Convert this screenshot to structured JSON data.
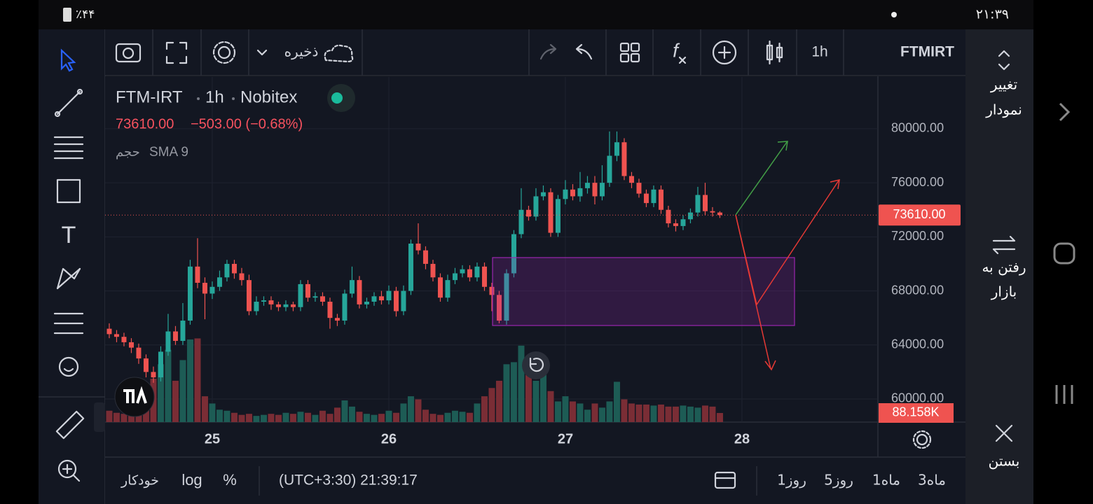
{
  "status_bar": {
    "battery": "٪۴۴",
    "time": "۲۱:۳۹"
  },
  "toolbar": {
    "save": "ذخیره",
    "interval": "1h",
    "symbol": "FTMIRT"
  },
  "legend": {
    "symbol": "FTM-IRT",
    "interval": "1h",
    "exchange": "Nobitex",
    "price": "73610.00",
    "change": "−503.00 (−0.68%)",
    "volume": "حجم",
    "indicator": "SMA 9"
  },
  "chart_data": {
    "type": "candlestick",
    "x": [
      24.4167,
      24.4583,
      24.5,
      24.5417,
      24.5833,
      24.625,
      24.6667,
      24.7083,
      24.75,
      24.7917,
      24.8333,
      24.875,
      24.9167,
      24.9583,
      25,
      25.0417,
      25.0833,
      25.125,
      25.1667,
      25.2083,
      25.25,
      25.2917,
      25.3333,
      25.375,
      25.4167,
      25.4583,
      25.5,
      25.5417,
      25.5833,
      25.625,
      25.6667,
      25.7083,
      25.75,
      25.7917,
      25.8333,
      25.875,
      25.9167,
      25.9583,
      26,
      26.0417,
      26.0833,
      26.125,
      26.1667,
      26.2083,
      26.25,
      26.2917,
      26.3333,
      26.375,
      26.4167,
      26.4583,
      26.5,
      26.5417,
      26.5833,
      26.625,
      26.6667,
      26.7083,
      26.75,
      26.7917,
      26.8333,
      26.875,
      26.9167,
      26.9583,
      27,
      27.0417,
      27.0833,
      27.125,
      27.1667,
      27.2083,
      27.25,
      27.2917,
      27.3333,
      27.375,
      27.4167,
      27.4583,
      27.5,
      27.5417,
      27.5833,
      27.625,
      27.6667,
      27.7083,
      27.75,
      27.7917,
      27.8333,
      27.875
    ],
    "open": [
      65200,
      64800,
      64600,
      64200,
      63800,
      63000,
      62000,
      61600,
      63500,
      65000,
      64300,
      65800,
      69800,
      68600,
      67800,
      68300,
      69000,
      70000,
      69300,
      68800,
      66500,
      67200,
      67300,
      67000,
      66800,
      67000,
      66800,
      68500,
      67500,
      67600,
      67200,
      66000,
      65800,
      67800,
      68800,
      67000,
      67200,
      67600,
      67300,
      68000,
      66500,
      68000,
      71500,
      71000,
      70000,
      69000,
      67500,
      68800,
      69300,
      69600,
      69000,
      69800,
      68300,
      67700,
      65800,
      69300,
      72200,
      74000,
      73500,
      75000,
      75300,
      72300,
      74800,
      75500,
      75000,
      75600,
      76000,
      75000,
      76000,
      78000,
      79000,
      76500,
      76000,
      75200,
      74500,
      75500,
      74000,
      73000,
      72800,
      73300,
      73800,
      75100,
      73900,
      73800
    ],
    "high": [
      65600,
      65100,
      64900,
      64500,
      64100,
      63300,
      62400,
      63900,
      66300,
      65400,
      67100,
      70300,
      71900,
      69000,
      68700,
      69500,
      70300,
      70300,
      69700,
      69200,
      67600,
      67600,
      67600,
      67200,
      67300,
      67200,
      68800,
      68800,
      67900,
      67900,
      67500,
      66300,
      68100,
      69800,
      69100,
      67500,
      67900,
      68000,
      68400,
      68300,
      68400,
      71800,
      73000,
      71300,
      70300,
      69300,
      69200,
      69700,
      69900,
      69900,
      70100,
      70100,
      68600,
      68000,
      69600,
      72500,
      75600,
      74300,
      75600,
      75800,
      75600,
      75100,
      76200,
      75900,
      76800,
      76500,
      76500,
      77300,
      79800,
      79800,
      79300,
      76800,
      76300,
      75500,
      75800,
      75800,
      74300,
      73300,
      73600,
      74100,
      75700,
      76000,
      74200,
      73900
    ],
    "low": [
      64500,
      64200,
      63900,
      63400,
      62600,
      61600,
      61200,
      61300,
      63200,
      64000,
      64000,
      65500,
      68200,
      65900,
      67400,
      68000,
      68700,
      68900,
      68400,
      66200,
      66200,
      66900,
      66600,
      66500,
      66500,
      66500,
      66500,
      67200,
      67200,
      66900,
      65200,
      65400,
      65500,
      67500,
      66700,
      66700,
      66900,
      67000,
      67000,
      66100,
      66200,
      67700,
      70700,
      69600,
      68700,
      67200,
      67200,
      68500,
      69000,
      68700,
      68700,
      68000,
      66500,
      65600,
      65500,
      69000,
      71900,
      73200,
      73200,
      74700,
      72000,
      72000,
      74400,
      74700,
      74600,
      75200,
      74400,
      74700,
      75700,
      77600,
      76200,
      75600,
      74900,
      74200,
      74200,
      73700,
      72700,
      72400,
      72500,
      73000,
      73500,
      73600,
      73500,
      73400
    ],
    "close": [
      64800,
      64600,
      64200,
      63800,
      63000,
      62000,
      61600,
      63500,
      65000,
      64300,
      65800,
      69800,
      68600,
      67800,
      68300,
      69000,
      70000,
      69300,
      68800,
      66500,
      67200,
      67300,
      67000,
      66800,
      67000,
      66800,
      68500,
      67500,
      67600,
      67200,
      66000,
      65800,
      67800,
      68800,
      67000,
      67200,
      67600,
      67300,
      68000,
      66500,
      68000,
      71500,
      71000,
      70000,
      69000,
      67500,
      68800,
      69300,
      69600,
      69000,
      69800,
      68300,
      67700,
      65800,
      69300,
      72200,
      74000,
      73500,
      75000,
      75300,
      72300,
      74800,
      75500,
      75000,
      75600,
      76000,
      75000,
      76000,
      78000,
      79000,
      76500,
      76000,
      75200,
      74500,
      75500,
      74000,
      73000,
      72800,
      73300,
      73800,
      75100,
      73900,
      73800,
      73610
    ],
    "volume": [
      110000,
      90000,
      80000,
      100000,
      150000,
      350000,
      420000,
      560000,
      700000,
      400000,
      600000,
      800000,
      810000,
      250000,
      180000,
      120000,
      110000,
      90000,
      70000,
      80000,
      60000,
      70000,
      80000,
      70000,
      90000,
      80000,
      100000,
      90000,
      70000,
      110000,
      80000,
      140000,
      210000,
      150000,
      100000,
      80000,
      70000,
      80000,
      110000,
      90000,
      180000,
      250000,
      220000,
      120000,
      80000,
      70000,
      90000,
      110000,
      100000,
      90000,
      180000,
      250000,
      330000,
      400000,
      560000,
      580000,
      740000,
      600000,
      400000,
      460000,
      300000,
      200000,
      250000,
      200000,
      180000,
      120000,
      180000,
      140000,
      200000,
      390000,
      220000,
      180000,
      170000,
      170000,
      160000,
      170000,
      150000,
      150000,
      160000,
      150000,
      140000,
      160000,
      150000,
      88158
    ],
    "up_color": "#26a69a",
    "down_color": "#ef5350",
    "volume_up_color": "#1d5c55",
    "volume_down_color": "#7a2d35",
    "xlim": [
      24.393,
      28.77
    ],
    "xticks": [
      25,
      26,
      27,
      28
    ],
    "ylim": [
      58290,
      83830
    ],
    "yticks": [
      {
        "value": 60000,
        "label": "60000.00"
      },
      {
        "value": 64000,
        "label": "64000.00"
      },
      {
        "value": 68000,
        "label": "68000.00"
      },
      {
        "value": 72000,
        "label": "72000.00"
      },
      {
        "value": 76000,
        "label": "76000.00"
      },
      {
        "value": 80000,
        "label": "80000.00"
      }
    ],
    "volume_lim": [
      0,
      3340000
    ],
    "last_price": {
      "value": 73610,
      "label": "73610.00"
    },
    "last_volume": {
      "value": 88158,
      "label": "88.158K"
    },
    "grid": true
  },
  "bottom_bar": {
    "auto": "خودکار",
    "log": "log",
    "percent": "%",
    "time": "(UTC+3:30) 21:39:17",
    "ranges": [
      "1روز",
      "5روز",
      "1ماه",
      "3ماه"
    ]
  },
  "side_panel": {
    "change_chart": [
      "تغییر",
      "نمودار"
    ],
    "go_market": [
      "رفتن به",
      "بازار"
    ],
    "close": "بستن"
  }
}
